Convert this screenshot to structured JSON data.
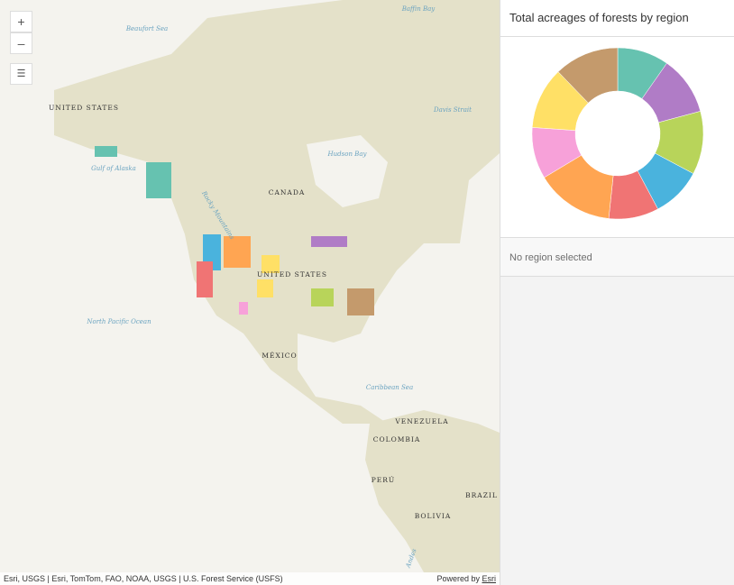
{
  "map": {
    "labels": [
      "Beaufort Sea",
      "Baffin Bay",
      "UNITED STATES",
      "Davis Strait",
      "Hudson Bay",
      "Gulf of Alaska",
      "CANADA",
      "Rocky Mountains",
      "UNITED STATES",
      "North Pacific Ocean",
      "MÉXICO",
      "Caribbean Sea",
      "VENEZUELA",
      "COLOMBIA",
      "PERÚ",
      "BRAZIL",
      "BOLIVIA",
      "Andes"
    ],
    "zoom_in": "+",
    "zoom_out": "–",
    "attribution": "Esri, USGS | Esri, TomTom, FAO, NOAA, USGS | U.S. Forest Service (USFS)",
    "powered_by": "Powered by",
    "esri": "Esri"
  },
  "panel": {
    "title": "Total acreages of forests by region",
    "selection": "No region selected"
  },
  "chart_data": {
    "type": "pie",
    "values": [
      35,
      40,
      43,
      34,
      34,
      53,
      35,
      42,
      44
    ],
    "colors": [
      "#66c2b0",
      "#b07cc6",
      "#b8d45a",
      "#4ab3dd",
      "#f07474",
      "#ffa552",
      "#f7a1d9",
      "#ffe066",
      "#c49a6c"
    ]
  }
}
